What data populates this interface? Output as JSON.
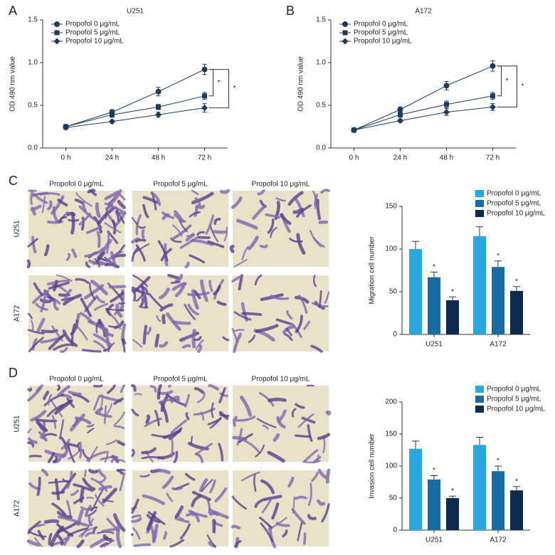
{
  "chart_data": [
    {
      "type": "line",
      "panel": "A",
      "title": "U251",
      "y_label": "OD 490 nm value",
      "categories": [
        "0 h",
        "24 h",
        "48 h",
        "72 h"
      ],
      "ylim": [
        0,
        1.5
      ],
      "yticks": [
        {
          "value": 0,
          "label": "0.0"
        },
        0.5,
        {
          "value": 1,
          "label": "1.0"
        },
        1.5
      ],
      "series": [
        {
          "name": "Propofol 0 μg/mL",
          "color": "#1f3b5c",
          "marker": "circle",
          "values": [
            0.25,
            0.42,
            0.66,
            0.92
          ],
          "errors": [
            0.02,
            0.03,
            0.05,
            0.06
          ]
        },
        {
          "name": "Propofol 5 μg/mL",
          "color": "#1f3b5c",
          "marker": "square",
          "values": [
            0.25,
            0.39,
            0.48,
            0.61
          ],
          "errors": [
            0.02,
            0.03,
            0.03,
            0.04
          ]
        },
        {
          "name": "Propofol 10 μg/mL",
          "color": "#1f3b5c",
          "marker": "diamond",
          "values": [
            0.24,
            0.31,
            0.39,
            0.47
          ],
          "errors": [
            0.02,
            0.02,
            0.03,
            0.05
          ]
        }
      ],
      "annotations": [
        "*",
        "*"
      ]
    },
    {
      "type": "line",
      "panel": "B",
      "title": "A172",
      "y_label": "OD 490 nm value",
      "categories": [
        "0 h",
        "24 h",
        "48 h",
        "72 h"
      ],
      "ylim": [
        0,
        1.5
      ],
      "yticks": [
        {
          "value": 0,
          "label": "0.0"
        },
        0.5,
        {
          "value": 1,
          "label": "1.0"
        },
        1.5
      ],
      "series": [
        {
          "name": "Propofol 0 μg/mL",
          "color": "#1f3b5c",
          "marker": "circle",
          "values": [
            0.21,
            0.45,
            0.73,
            0.96
          ],
          "errors": [
            0.02,
            0.03,
            0.05,
            0.06
          ]
        },
        {
          "name": "Propofol 5 μg/mL",
          "color": "#1f3b5c",
          "marker": "square",
          "values": [
            0.21,
            0.39,
            0.51,
            0.61
          ],
          "errors": [
            0.02,
            0.03,
            0.04,
            0.04
          ]
        },
        {
          "name": "Propofol 10 μg/mL",
          "color": "#1f3b5c",
          "marker": "diamond",
          "values": [
            0.21,
            0.32,
            0.42,
            0.48
          ],
          "errors": [
            0.02,
            0.02,
            0.04,
            0.04
          ]
        }
      ],
      "annotations": [
        "*",
        "*"
      ]
    },
    {
      "type": "bar",
      "panel": "C",
      "y_label": "Migration cell number",
      "categories": [
        "U251",
        "A172"
      ],
      "ylim": [
        0,
        150
      ],
      "yticks": [
        0,
        50,
        100,
        150
      ],
      "series": [
        {
          "name": "Propofol 0 μg/mL",
          "color": "#29a8e0",
          "values": [
            100,
            115
          ],
          "errors": [
            9,
            11
          ]
        },
        {
          "name": "Propofol 5 μg/mL",
          "color": "#1a6ba0",
          "values": [
            67,
            79
          ],
          "errors": [
            6,
            7
          ],
          "significance": [
            "*",
            "*"
          ]
        },
        {
          "name": "Propofol 10 μg/mL",
          "color": "#0d2a4f",
          "values": [
            40,
            51
          ],
          "errors": [
            4,
            5
          ],
          "significance": [
            "*",
            "*"
          ]
        }
      ]
    },
    {
      "type": "bar",
      "panel": "D",
      "y_label": "Invasion cell number",
      "categories": [
        "U251",
        "A172"
      ],
      "ylim": [
        0,
        200
      ],
      "yticks": [
        0,
        50,
        100,
        150,
        200
      ],
      "series": [
        {
          "name": "Propofol 0 μg/mL",
          "color": "#29a8e0",
          "values": [
            127,
            133
          ],
          "errors": [
            12,
            12
          ]
        },
        {
          "name": "Propofol 5 μg/mL",
          "color": "#1a6ba0",
          "values": [
            79,
            92
          ],
          "errors": [
            6,
            8
          ],
          "significance": [
            "*",
            "*"
          ]
        },
        {
          "name": "Propofol 10 μg/mL",
          "color": "#0d2a4f",
          "values": [
            50,
            62
          ],
          "errors": [
            3,
            6
          ],
          "significance": [
            "*",
            "*"
          ]
        }
      ]
    }
  ],
  "image_panels": [
    {
      "columns": [
        "Propofol 0 μg/mL",
        "Propofol 5 μg/mL",
        "Propofol 10 μg/mL"
      ],
      "rows": [
        "U251",
        "A172"
      ]
    },
    {
      "columns": [
        "Propofol 0 μg/mL",
        "Propofol 5 μg/mL",
        "Propofol 10 μg/mL"
      ],
      "rows": [
        "U251",
        "A172"
      ]
    }
  ]
}
